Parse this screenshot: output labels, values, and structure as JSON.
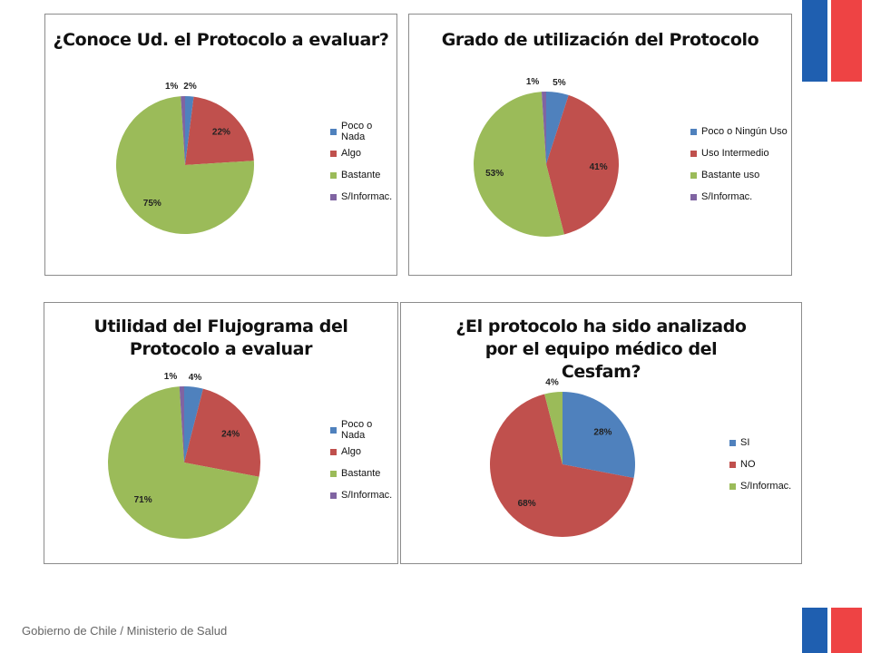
{
  "footer": {
    "text": "Gobierno de Chile / Ministerio de Salud"
  },
  "colors": {
    "blue": "#4f81bd",
    "red": "#c0504d",
    "green": "#9bbb59",
    "purple": "#8064a2"
  },
  "chart_data": [
    {
      "type": "pie",
      "title": "¿Conoce Ud. el Protocolo a evaluar?",
      "categories": [
        "Poco o Nada",
        "Algo",
        "Bastante",
        "S/Informac."
      ],
      "values": [
        2,
        22,
        75,
        1
      ],
      "labels": [
        "2%",
        "22%",
        "75%",
        "1%"
      ],
      "colors": [
        "#4f81bd",
        "#c0504d",
        "#9bbb59",
        "#8064a2"
      ],
      "legend": "right"
    },
    {
      "type": "pie",
      "title": "Grado de utilización del Protocolo",
      "categories": [
        "Poco o Ningún Uso",
        "Uso Intermedio",
        "Bastante uso",
        "S/Informac."
      ],
      "values": [
        5,
        41,
        53,
        1
      ],
      "labels": [
        "5%",
        "41%",
        "53%",
        "1%"
      ],
      "colors": [
        "#4f81bd",
        "#c0504d",
        "#9bbb59",
        "#8064a2"
      ],
      "legend": "right"
    },
    {
      "type": "pie",
      "title": "Utilidad del Flujograma del Protocolo a evaluar",
      "categories": [
        "Poco o Nada",
        "Algo",
        "Bastante",
        "S/Informac."
      ],
      "values": [
        4,
        24,
        71,
        1
      ],
      "labels": [
        "4%",
        "24%",
        "71%",
        "1%"
      ],
      "colors": [
        "#4f81bd",
        "#c0504d",
        "#9bbb59",
        "#8064a2"
      ],
      "legend": "right"
    },
    {
      "type": "pie",
      "title": "¿El protocolo ha sido analizado  por el equipo médico del Cesfam?",
      "categories": [
        "SI",
        "NO",
        "S/Informac."
      ],
      "values": [
        28,
        68,
        4
      ],
      "labels": [
        "28%",
        "68%",
        "4%"
      ],
      "colors": [
        "#4f81bd",
        "#c0504d",
        "#9bbb59"
      ],
      "legend": "right"
    }
  ]
}
